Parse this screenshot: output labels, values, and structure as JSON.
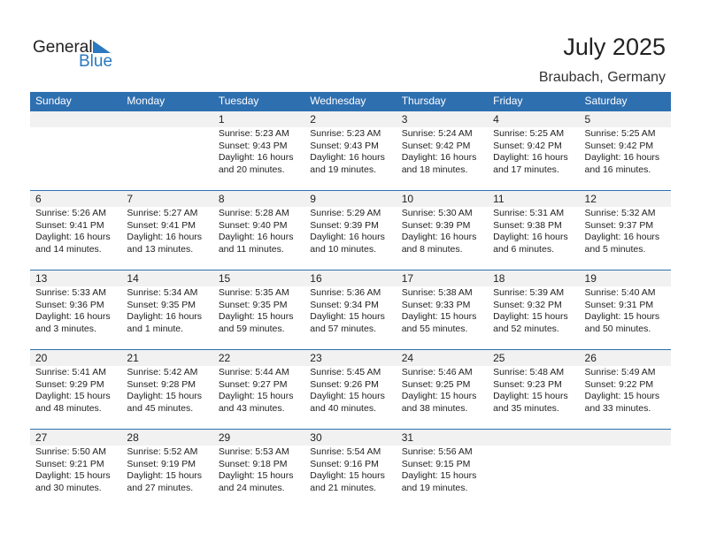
{
  "logo": {
    "word1": "General",
    "word2": "Blue"
  },
  "title": "July 2025",
  "location": "Braubach, Germany",
  "colors": {
    "accent": "#2e6fb0",
    "band": "#f1f1f1"
  },
  "weekdays": [
    "Sunday",
    "Monday",
    "Tuesday",
    "Wednesday",
    "Thursday",
    "Friday",
    "Saturday"
  ],
  "weeks": [
    [
      null,
      null,
      {
        "day": "1",
        "sunrise": "Sunrise: 5:23 AM",
        "sunset": "Sunset: 9:43 PM",
        "daylight1": "Daylight: 16 hours",
        "daylight2": "and 20 minutes."
      },
      {
        "day": "2",
        "sunrise": "Sunrise: 5:23 AM",
        "sunset": "Sunset: 9:43 PM",
        "daylight1": "Daylight: 16 hours",
        "daylight2": "and 19 minutes."
      },
      {
        "day": "3",
        "sunrise": "Sunrise: 5:24 AM",
        "sunset": "Sunset: 9:42 PM",
        "daylight1": "Daylight: 16 hours",
        "daylight2": "and 18 minutes."
      },
      {
        "day": "4",
        "sunrise": "Sunrise: 5:25 AM",
        "sunset": "Sunset: 9:42 PM",
        "daylight1": "Daylight: 16 hours",
        "daylight2": "and 17 minutes."
      },
      {
        "day": "5",
        "sunrise": "Sunrise: 5:25 AM",
        "sunset": "Sunset: 9:42 PM",
        "daylight1": "Daylight: 16 hours",
        "daylight2": "and 16 minutes."
      }
    ],
    [
      {
        "day": "6",
        "sunrise": "Sunrise: 5:26 AM",
        "sunset": "Sunset: 9:41 PM",
        "daylight1": "Daylight: 16 hours",
        "daylight2": "and 14 minutes."
      },
      {
        "day": "7",
        "sunrise": "Sunrise: 5:27 AM",
        "sunset": "Sunset: 9:41 PM",
        "daylight1": "Daylight: 16 hours",
        "daylight2": "and 13 minutes."
      },
      {
        "day": "8",
        "sunrise": "Sunrise: 5:28 AM",
        "sunset": "Sunset: 9:40 PM",
        "daylight1": "Daylight: 16 hours",
        "daylight2": "and 11 minutes."
      },
      {
        "day": "9",
        "sunrise": "Sunrise: 5:29 AM",
        "sunset": "Sunset: 9:39 PM",
        "daylight1": "Daylight: 16 hours",
        "daylight2": "and 10 minutes."
      },
      {
        "day": "10",
        "sunrise": "Sunrise: 5:30 AM",
        "sunset": "Sunset: 9:39 PM",
        "daylight1": "Daylight: 16 hours",
        "daylight2": "and 8 minutes."
      },
      {
        "day": "11",
        "sunrise": "Sunrise: 5:31 AM",
        "sunset": "Sunset: 9:38 PM",
        "daylight1": "Daylight: 16 hours",
        "daylight2": "and 6 minutes."
      },
      {
        "day": "12",
        "sunrise": "Sunrise: 5:32 AM",
        "sunset": "Sunset: 9:37 PM",
        "daylight1": "Daylight: 16 hours",
        "daylight2": "and 5 minutes."
      }
    ],
    [
      {
        "day": "13",
        "sunrise": "Sunrise: 5:33 AM",
        "sunset": "Sunset: 9:36 PM",
        "daylight1": "Daylight: 16 hours",
        "daylight2": "and 3 minutes."
      },
      {
        "day": "14",
        "sunrise": "Sunrise: 5:34 AM",
        "sunset": "Sunset: 9:35 PM",
        "daylight1": "Daylight: 16 hours",
        "daylight2": "and 1 minute."
      },
      {
        "day": "15",
        "sunrise": "Sunrise: 5:35 AM",
        "sunset": "Sunset: 9:35 PM",
        "daylight1": "Daylight: 15 hours",
        "daylight2": "and 59 minutes."
      },
      {
        "day": "16",
        "sunrise": "Sunrise: 5:36 AM",
        "sunset": "Sunset: 9:34 PM",
        "daylight1": "Daylight: 15 hours",
        "daylight2": "and 57 minutes."
      },
      {
        "day": "17",
        "sunrise": "Sunrise: 5:38 AM",
        "sunset": "Sunset: 9:33 PM",
        "daylight1": "Daylight: 15 hours",
        "daylight2": "and 55 minutes."
      },
      {
        "day": "18",
        "sunrise": "Sunrise: 5:39 AM",
        "sunset": "Sunset: 9:32 PM",
        "daylight1": "Daylight: 15 hours",
        "daylight2": "and 52 minutes."
      },
      {
        "day": "19",
        "sunrise": "Sunrise: 5:40 AM",
        "sunset": "Sunset: 9:31 PM",
        "daylight1": "Daylight: 15 hours",
        "daylight2": "and 50 minutes."
      }
    ],
    [
      {
        "day": "20",
        "sunrise": "Sunrise: 5:41 AM",
        "sunset": "Sunset: 9:29 PM",
        "daylight1": "Daylight: 15 hours",
        "daylight2": "and 48 minutes."
      },
      {
        "day": "21",
        "sunrise": "Sunrise: 5:42 AM",
        "sunset": "Sunset: 9:28 PM",
        "daylight1": "Daylight: 15 hours",
        "daylight2": "and 45 minutes."
      },
      {
        "day": "22",
        "sunrise": "Sunrise: 5:44 AM",
        "sunset": "Sunset: 9:27 PM",
        "daylight1": "Daylight: 15 hours",
        "daylight2": "and 43 minutes."
      },
      {
        "day": "23",
        "sunrise": "Sunrise: 5:45 AM",
        "sunset": "Sunset: 9:26 PM",
        "daylight1": "Daylight: 15 hours",
        "daylight2": "and 40 minutes."
      },
      {
        "day": "24",
        "sunrise": "Sunrise: 5:46 AM",
        "sunset": "Sunset: 9:25 PM",
        "daylight1": "Daylight: 15 hours",
        "daylight2": "and 38 minutes."
      },
      {
        "day": "25",
        "sunrise": "Sunrise: 5:48 AM",
        "sunset": "Sunset: 9:23 PM",
        "daylight1": "Daylight: 15 hours",
        "daylight2": "and 35 minutes."
      },
      {
        "day": "26",
        "sunrise": "Sunrise: 5:49 AM",
        "sunset": "Sunset: 9:22 PM",
        "daylight1": "Daylight: 15 hours",
        "daylight2": "and 33 minutes."
      }
    ],
    [
      {
        "day": "27",
        "sunrise": "Sunrise: 5:50 AM",
        "sunset": "Sunset: 9:21 PM",
        "daylight1": "Daylight: 15 hours",
        "daylight2": "and 30 minutes."
      },
      {
        "day": "28",
        "sunrise": "Sunrise: 5:52 AM",
        "sunset": "Sunset: 9:19 PM",
        "daylight1": "Daylight: 15 hours",
        "daylight2": "and 27 minutes."
      },
      {
        "day": "29",
        "sunrise": "Sunrise: 5:53 AM",
        "sunset": "Sunset: 9:18 PM",
        "daylight1": "Daylight: 15 hours",
        "daylight2": "and 24 minutes."
      },
      {
        "day": "30",
        "sunrise": "Sunrise: 5:54 AM",
        "sunset": "Sunset: 9:16 PM",
        "daylight1": "Daylight: 15 hours",
        "daylight2": "and 21 minutes."
      },
      {
        "day": "31",
        "sunrise": "Sunrise: 5:56 AM",
        "sunset": "Sunset: 9:15 PM",
        "daylight1": "Daylight: 15 hours",
        "daylight2": "and 19 minutes."
      },
      null,
      null
    ]
  ]
}
